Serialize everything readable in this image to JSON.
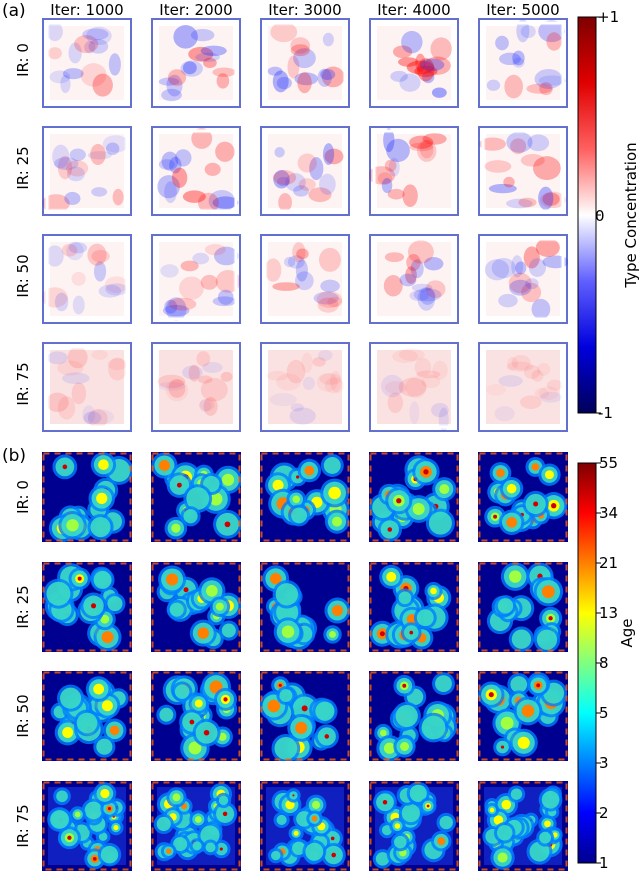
{
  "panels": {
    "a": {
      "label": "(a)"
    },
    "b": {
      "label": "(b)"
    }
  },
  "column_labels": [
    "Iter: 1000",
    "Iter: 2000",
    "Iter: 3000",
    "Iter: 4000",
    "Iter: 5000"
  ],
  "row_labels": [
    "IR: 0",
    "IR: 25",
    "IR: 50",
    "IR: 75"
  ],
  "colorbars": {
    "type_concentration": {
      "label": "Type Concentration",
      "ticks": [
        "+1",
        "0",
        "-1"
      ],
      "colors": [
        "#7f0000",
        "#e00000",
        "#ff6060",
        "#ffffff",
        "#6060ff",
        "#0000dd",
        "#00005a"
      ]
    },
    "age": {
      "label": "Age",
      "ticks": [
        "55",
        "34",
        "21",
        "13",
        "8",
        "5",
        "3",
        "2",
        "1"
      ],
      "colors": [
        "#7f0000",
        "#ff0000",
        "#ff8000",
        "#ffff00",
        "#80ff80",
        "#00ffff",
        "#0080ff",
        "#0000ff",
        "#00008f"
      ]
    }
  },
  "chart_data": [
    {
      "type": "heatmap",
      "panel": "(a)",
      "columns": [
        "Iter: 1000",
        "Iter: 2000",
        "Iter: 3000",
        "Iter: 4000",
        "Iter: 5000"
      ],
      "rows": [
        "IR: 0",
        "IR: 25",
        "IR: 50",
        "IR: 75"
      ],
      "colorbar_label": "Type Concentration",
      "colorbar_range": [
        -1,
        1
      ],
      "colorbar_ticks": [
        "+1",
        "0",
        "-1"
      ],
      "intensity": [
        [
          0.45,
          0.6,
          0.6,
          0.65,
          0.5
        ],
        [
          0.4,
          0.6,
          0.55,
          0.55,
          0.55
        ],
        [
          0.35,
          0.45,
          0.45,
          0.5,
          0.5
        ],
        [
          0.2,
          0.22,
          0.18,
          0.18,
          0.15
        ]
      ]
    },
    {
      "type": "heatmap",
      "panel": "(b)",
      "columns": [
        "Iter: 1000",
        "Iter: 2000",
        "Iter: 3000",
        "Iter: 4000",
        "Iter: 5000"
      ],
      "rows": [
        "IR: 0",
        "IR: 25",
        "IR: 50",
        "IR: 75"
      ],
      "colorbar_label": "Age",
      "colorbar_scale": "log",
      "colorbar_range": [
        1,
        55
      ],
      "colorbar_ticks": [
        55,
        34,
        21,
        13,
        8,
        5,
        3,
        2,
        1
      ],
      "intensity": [
        [
          0.7,
          0.6,
          0.65,
          0.7,
          0.7
        ],
        [
          0.6,
          0.55,
          0.6,
          0.55,
          0.55
        ],
        [
          0.55,
          0.55,
          0.55,
          0.5,
          0.5
        ],
        [
          0.4,
          0.35,
          0.35,
          0.3,
          0.3
        ]
      ]
    }
  ]
}
